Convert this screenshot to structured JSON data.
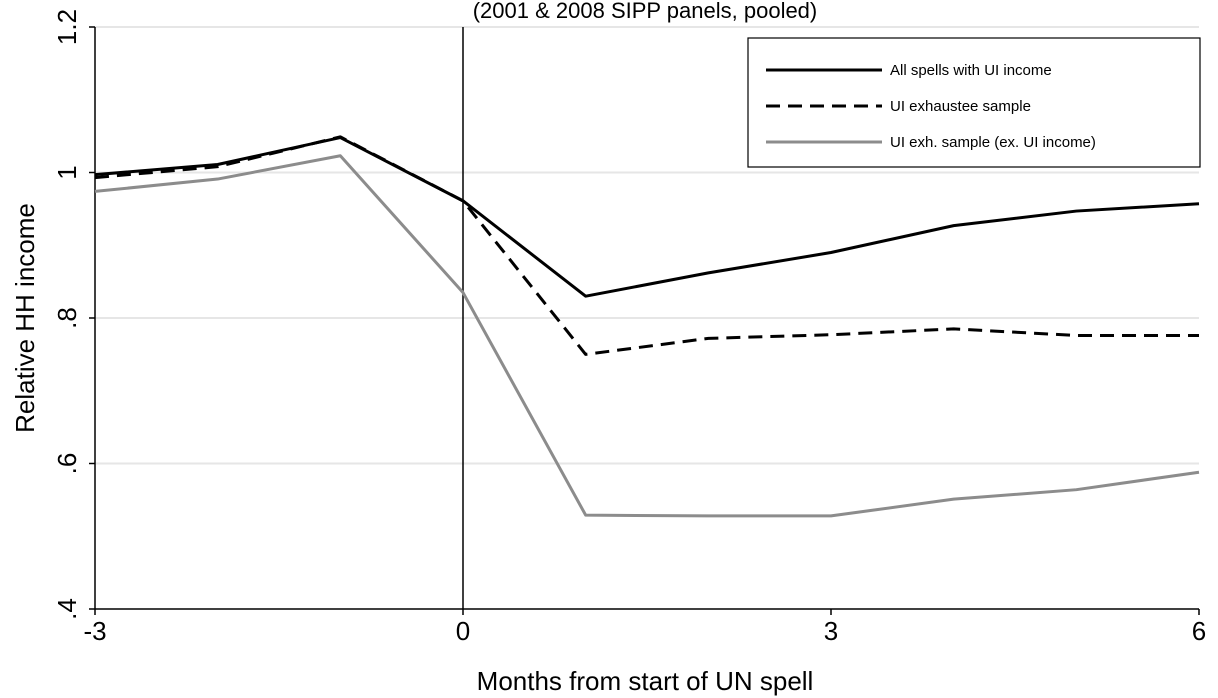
{
  "chart_data": {
    "type": "line",
    "title": "",
    "subtitle": "(2001 & 2008 SIPP panels, pooled)",
    "xlabel": "Months from start of UN spell",
    "ylabel": "Relative HH income",
    "xlim": [
      -3,
      6
    ],
    "ylim": [
      0.4,
      1.2
    ],
    "x_ticks": [
      -3,
      0,
      3,
      6
    ],
    "x_tick_labels": [
      "-3",
      "0",
      "3",
      "6"
    ],
    "y_ticks": [
      0.4,
      0.6,
      0.8,
      1.0,
      1.2
    ],
    "y_tick_labels": [
      ".4",
      ".6",
      ".8",
      "1",
      "1.2"
    ],
    "grid": "horizontal",
    "reference_line_x": 0,
    "legend_position": "top-right",
    "x": [
      -3,
      -2,
      -1,
      0,
      1,
      2,
      3,
      4,
      5,
      6
    ],
    "series": [
      {
        "name": "All spells with UI income",
        "style": "solid",
        "color": "#000000",
        "values": [
          0.997,
          1.011,
          1.048,
          0.961,
          0.83,
          0.862,
          0.89,
          0.927,
          0.947,
          0.957
        ]
      },
      {
        "name": "UI exhaustee sample",
        "style": "dashed",
        "color": "#000000",
        "values": [
          0.993,
          1.008,
          1.049,
          0.961,
          0.75,
          0.772,
          0.777,
          0.785,
          0.776,
          0.776
        ]
      },
      {
        "name": "UI exh. sample (ex. UI income)",
        "style": "solid",
        "color": "#8c8c8c",
        "values": [
          0.974,
          0.991,
          1.023,
          0.835,
          0.529,
          0.528,
          0.528,
          0.551,
          0.564,
          0.588
        ]
      }
    ]
  }
}
